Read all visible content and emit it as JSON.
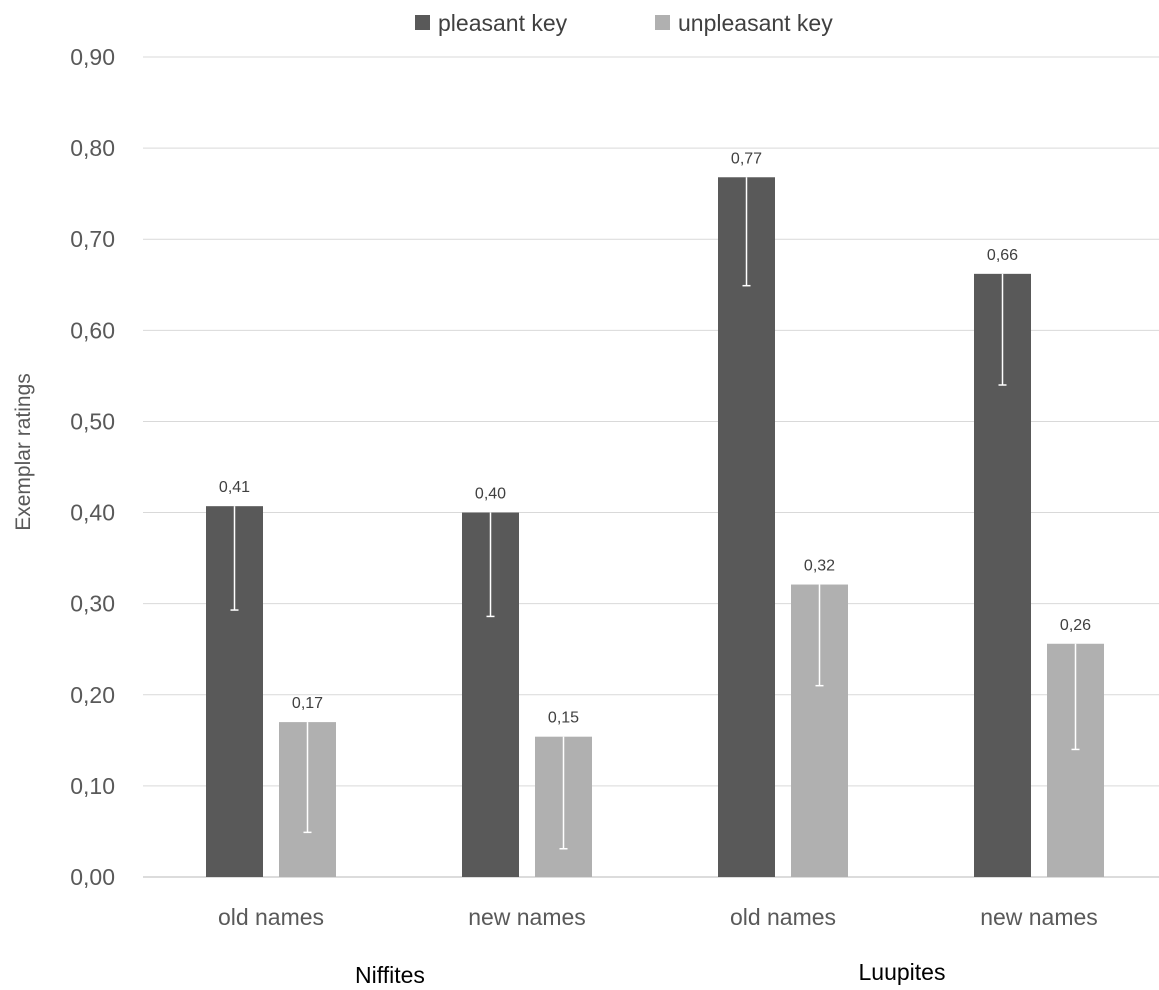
{
  "chart_data": {
    "type": "bar",
    "title": "",
    "ylabel": "Exemplar ratings",
    "xlabel": "",
    "ylim": [
      0,
      0.9
    ],
    "yticks": [
      "0,00",
      "0,10",
      "0,20",
      "0,30",
      "0,40",
      "0,50",
      "0,60",
      "0,70",
      "0,80",
      "0,90"
    ],
    "ytick_values": [
      0,
      0.1,
      0.2,
      0.3,
      0.4,
      0.5,
      0.6,
      0.7,
      0.8,
      0.9
    ],
    "categories": [
      "old names",
      "new names",
      "old names",
      "new names"
    ],
    "groups": [
      {
        "label": "Niffites",
        "categories": [
          0,
          1
        ]
      },
      {
        "label": "Luupites",
        "categories": [
          2,
          3
        ]
      }
    ],
    "grid": true,
    "legend_position": "top",
    "series": [
      {
        "name": "pleasant key",
        "color": "#595959",
        "values": [
          0.407,
          0.4,
          0.768,
          0.662
        ],
        "labels": [
          "0,41",
          "0,40",
          "0,77",
          "0,66"
        ],
        "error_lower": [
          0.293,
          0.286,
          0.649,
          0.54
        ]
      },
      {
        "name": "unpleasant key",
        "color": "#b0b0b0",
        "values": [
          0.17,
          0.154,
          0.321,
          0.256
        ],
        "labels": [
          "0,17",
          "0,15",
          "0,32",
          "0,26"
        ],
        "error_lower": [
          0.049,
          0.031,
          0.21,
          0.14
        ]
      }
    ]
  }
}
